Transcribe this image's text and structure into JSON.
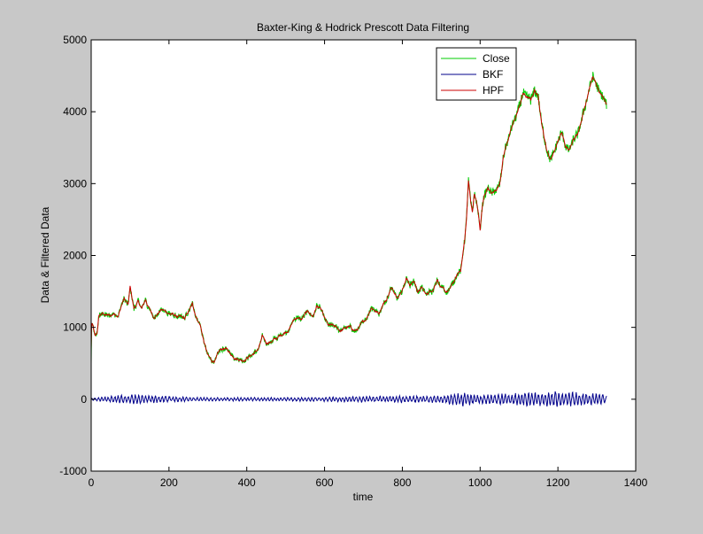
{
  "figure": {
    "background": "#c8c8c8",
    "axes_background": "#ffffff"
  },
  "chart_data": {
    "type": "line",
    "title": "Baxter-King & Hodrick Prescott Data Filtering",
    "xlabel": "time",
    "ylabel": "Data & Filtered Data",
    "xlim": [
      0,
      1400
    ],
    "ylim": [
      -1000,
      5000
    ],
    "xticks": [
      0,
      200,
      400,
      600,
      800,
      1000,
      1200,
      1400
    ],
    "yticks": [
      -1000,
      0,
      1000,
      2000,
      3000,
      4000,
      5000
    ],
    "grid": false,
    "legend_position": "top-right",
    "series": [
      {
        "name": "Close",
        "color": "#00cc00",
        "x": [
          0,
          2,
          5,
          10,
          15,
          20,
          30,
          50,
          60,
          70,
          80,
          85,
          95,
          100,
          105,
          110,
          120,
          130,
          140,
          150,
          160,
          170,
          180,
          200,
          220,
          240,
          250,
          260,
          270,
          280,
          290,
          300,
          310,
          320,
          330,
          340,
          350,
          360,
          370,
          380,
          390,
          400,
          410,
          420,
          430,
          440,
          450,
          460,
          480,
          500,
          510,
          520,
          530,
          540,
          550,
          560,
          570,
          580,
          590,
          600,
          610,
          620,
          640,
          660,
          680,
          700,
          710,
          720,
          730,
          740,
          750,
          760,
          770,
          780,
          790,
          800,
          810,
          820,
          830,
          840,
          850,
          860,
          870,
          880,
          890,
          900,
          910,
          920,
          930,
          940,
          950,
          955,
          960,
          965,
          970,
          975,
          980,
          985,
          990,
          995,
          1000,
          1005,
          1010,
          1020,
          1030,
          1040,
          1050,
          1060,
          1070,
          1080,
          1090,
          1100,
          1110,
          1120,
          1130,
          1140,
          1150,
          1160,
          1170,
          1180,
          1190,
          1200,
          1210,
          1220,
          1230,
          1240,
          1250,
          1260,
          1270,
          1280,
          1290,
          1300,
          1310,
          1320,
          1325
        ],
        "values": [
          500,
          1050,
          1000,
          850,
          900,
          1150,
          1180,
          1150,
          1200,
          1180,
          1350,
          1400,
          1300,
          1550,
          1400,
          1250,
          1350,
          1250,
          1380,
          1250,
          1150,
          1200,
          1250,
          1200,
          1150,
          1100,
          1200,
          1300,
          1150,
          1050,
          800,
          600,
          520,
          550,
          650,
          700,
          680,
          620,
          600,
          580,
          560,
          600,
          620,
          650,
          700,
          850,
          780,
          800,
          850,
          950,
          1000,
          1100,
          1150,
          1100,
          1180,
          1200,
          1150,
          1300,
          1250,
          1100,
          1000,
          1000,
          950,
          1000,
          950,
          1050,
          1150,
          1300,
          1250,
          1200,
          1350,
          1400,
          1550,
          1500,
          1450,
          1550,
          1700,
          1600,
          1650,
          1500,
          1550,
          1450,
          1500,
          1550,
          1700,
          1550,
          1480,
          1500,
          1600,
          1700,
          1800,
          2000,
          2200,
          2500,
          3050,
          2800,
          2600,
          2850,
          2750,
          2600,
          2350,
          2650,
          2800,
          2950,
          2850,
          2900,
          3000,
          3400,
          3600,
          3750,
          3900,
          4050,
          4250,
          4200,
          4150,
          4300,
          4200,
          3800,
          3500,
          3350,
          3450,
          3600,
          3700,
          3500,
          3450,
          3650,
          3700,
          3900,
          4100,
          4350,
          4500,
          4350,
          4200,
          4150,
          4100
        ],
        "style": "noisy"
      },
      {
        "name": "BKF",
        "color": "#00008b",
        "x_range": [
          0,
          1325
        ],
        "amplitude_envelope": [
          [
            0,
            15
          ],
          [
            100,
            70
          ],
          [
            200,
            40
          ],
          [
            300,
            25
          ],
          [
            500,
            25
          ],
          [
            700,
            40
          ],
          [
            900,
            55
          ],
          [
            960,
            100
          ],
          [
            1000,
            60
          ],
          [
            1100,
            90
          ],
          [
            1200,
            110
          ],
          [
            1325,
            70
          ]
        ],
        "style": "oscillating around zero"
      },
      {
        "name": "HPF",
        "color": "#cc0000",
        "style": "smoothed Close"
      }
    ]
  }
}
